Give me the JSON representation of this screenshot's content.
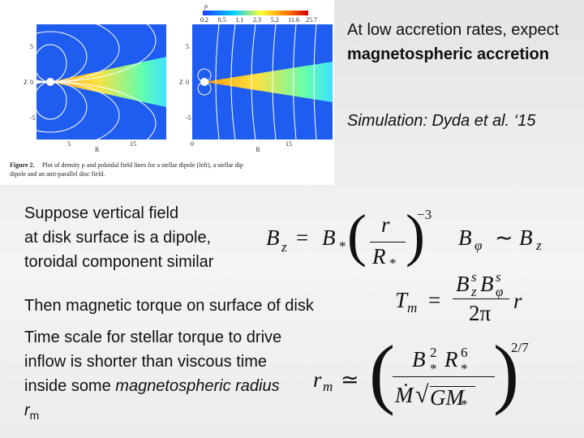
{
  "figure": {
    "colorbar_label": "ρ",
    "colorbar_ticks": [
      "0.2",
      "0.5",
      "1.1",
      "2.3",
      "5.2",
      "11.6",
      "25.7"
    ],
    "panels": [
      {
        "y_label": "Z",
        "x_label": "R",
        "y_ticks": [
          "5",
          "0",
          "-5"
        ],
        "x_ticks": [
          "5",
          "15"
        ]
      },
      {
        "y_label": "Z",
        "x_label": "R",
        "y_ticks": [
          "5",
          "0",
          "-5"
        ],
        "x_ticks": [
          "0",
          "15"
        ]
      }
    ],
    "caption_label": "Figure 2.",
    "caption_line1": "Plot of density ρ and poloidal field lines for a stellar dipole (left), a stellar dip",
    "caption_line2": "dipole and an anti-parallel disc field."
  },
  "intro": {
    "text": "At low accretion rates, expect ",
    "bold": "magnetospheric accretion"
  },
  "citation": "Simulation: Dyda et al. ‘15",
  "dipole_text": [
    "Suppose vertical field",
    "at disk surface is a dipole,",
    "toroidal component similar"
  ],
  "torque_text": "Then magnetic torque on surface of disk",
  "timescale": {
    "text": "Time scale for stellar torque to drive inflow is shorter than viscous time inside some ",
    "italic": "magnetospheric radius r",
    "sub": "m"
  },
  "equations": {
    "bz": {
      "B": "B",
      "z": "z",
      "eq": "=",
      "B2": "B",
      "star": "*",
      "lparen": "(",
      "r": "r",
      "R": "R",
      "star2": "*",
      "rparen": ")",
      "exp": "−3"
    },
    "bphi": {
      "B": "B",
      "phi": "φ",
      "sim": "∼",
      "B2": "B",
      "z": "z"
    },
    "tm": {
      "T": "T",
      "m": "m",
      "eq": "=",
      "B1": "B",
      "z": "z",
      "s1": "s",
      "B2": "B",
      "phi": "φ",
      "s2": "s",
      "den": "2π",
      "r": "r"
    },
    "rm": {
      "r": "r",
      "m": "m",
      "approx": "≃",
      "lparen": "(",
      "B": "B",
      "two": "2",
      "star1": "*",
      "R": "R",
      "six": "6",
      "star2": "*",
      "Mdot": "Ṁ",
      "sqrt": "√",
      "GM": "GM",
      "star3": "*",
      "rparen": ")",
      "exp": "2/7"
    }
  }
}
